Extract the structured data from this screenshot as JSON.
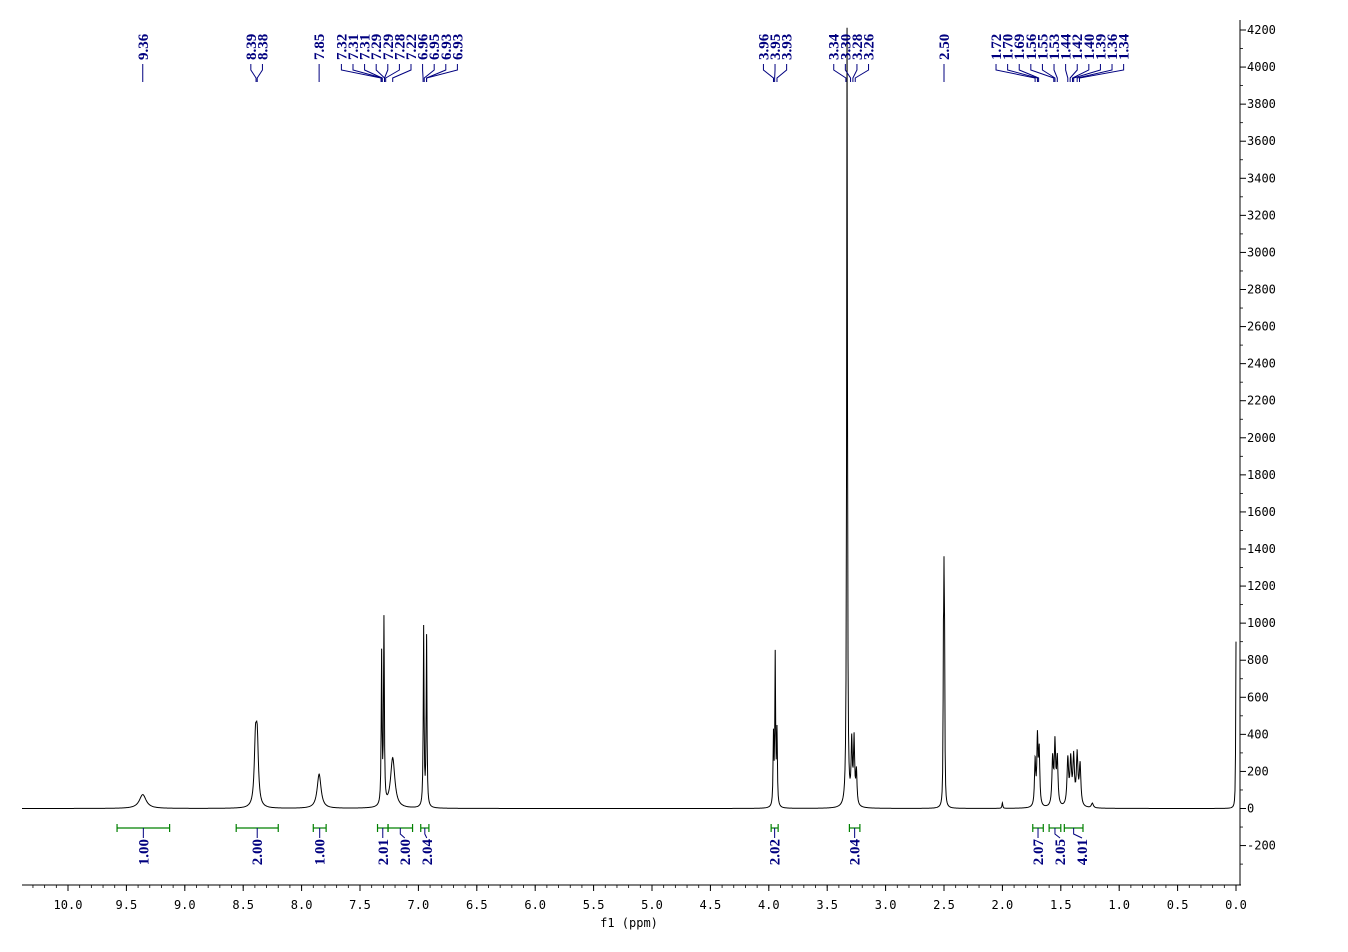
{
  "chart_data": {
    "type": "line",
    "title": "",
    "xlabel": "f1 (ppm)",
    "ylabel": "",
    "xlim": [
      10.35,
      -0.02
    ],
    "ylim": [
      -420,
      4230
    ],
    "x_ticks": [
      "10.0",
      "9.5",
      "9.0",
      "8.5",
      "8.0",
      "7.5",
      "7.0",
      "6.5",
      "6.0",
      "5.5",
      "5.0",
      "4.5",
      "4.0",
      "3.5",
      "3.0",
      "2.5",
      "2.0",
      "1.5",
      "1.0",
      "0.5",
      "0.0"
    ],
    "x_tick_values": [
      10.0,
      9.5,
      9.0,
      8.5,
      8.0,
      7.5,
      7.0,
      6.5,
      6.0,
      5.5,
      5.0,
      4.5,
      4.0,
      3.5,
      3.0,
      2.5,
      2.0,
      1.5,
      1.0,
      0.5,
      0.0
    ],
    "y_ticks": [
      "4200",
      "4000",
      "3800",
      "3600",
      "3400",
      "3200",
      "3000",
      "2800",
      "2600",
      "2400",
      "2200",
      "2000",
      "1800",
      "1600",
      "1400",
      "1200",
      "1000",
      "800",
      "600",
      "400",
      "200",
      "0",
      "-200"
    ],
    "y_tick_values": [
      4200,
      4000,
      3800,
      3600,
      3400,
      3200,
      3000,
      2800,
      2600,
      2400,
      2200,
      2000,
      1800,
      1600,
      1400,
      1200,
      1000,
      800,
      600,
      400,
      200,
      0,
      -200
    ],
    "peaks": [
      {
        "ppm": 9.36,
        "height": 75,
        "width": 0.035
      },
      {
        "ppm": 8.395,
        "height": 320,
        "width": 0.012
      },
      {
        "ppm": 8.38,
        "height": 330,
        "width": 0.012
      },
      {
        "ppm": 7.85,
        "height": 185,
        "width": 0.02
      },
      {
        "ppm": 7.315,
        "height": 810,
        "width": 0.004
      },
      {
        "ppm": 7.295,
        "height": 990,
        "width": 0.004
      },
      {
        "ppm": 7.22,
        "height": 270,
        "width": 0.022
      },
      {
        "ppm": 6.955,
        "height": 965,
        "width": 0.004
      },
      {
        "ppm": 6.93,
        "height": 915,
        "width": 0.004
      },
      {
        "ppm": 3.96,
        "height": 370,
        "width": 0.004
      },
      {
        "ppm": 3.945,
        "height": 805,
        "width": 0.004
      },
      {
        "ppm": 3.93,
        "height": 390,
        "width": 0.004
      },
      {
        "ppm": 3.33,
        "height": 4200,
        "width": 0.004
      },
      {
        "ppm": 3.29,
        "height": 330,
        "width": 0.006
      },
      {
        "ppm": 3.27,
        "height": 350,
        "width": 0.006
      },
      {
        "ppm": 3.25,
        "height": 180,
        "width": 0.006
      },
      {
        "ppm": 2.505,
        "height": 700,
        "width": 0.003
      },
      {
        "ppm": 2.5,
        "height": 990,
        "width": 0.003
      },
      {
        "ppm": 2.495,
        "height": 700,
        "width": 0.003
      },
      {
        "ppm": 2.0,
        "height": 30,
        "width": 0.004
      },
      {
        "ppm": 1.72,
        "height": 240,
        "width": 0.006
      },
      {
        "ppm": 1.7,
        "height": 360,
        "width": 0.006
      },
      {
        "ppm": 1.685,
        "height": 290,
        "width": 0.006
      },
      {
        "ppm": 1.57,
        "height": 250,
        "width": 0.007
      },
      {
        "ppm": 1.55,
        "height": 330,
        "width": 0.007
      },
      {
        "ppm": 1.53,
        "height": 250,
        "width": 0.007
      },
      {
        "ppm": 1.44,
        "height": 250,
        "width": 0.008
      },
      {
        "ppm": 1.415,
        "height": 240,
        "width": 0.008
      },
      {
        "ppm": 1.39,
        "height": 255,
        "width": 0.008
      },
      {
        "ppm": 1.36,
        "height": 270,
        "width": 0.008
      },
      {
        "ppm": 1.335,
        "height": 220,
        "width": 0.008
      },
      {
        "ppm": 1.23,
        "height": 25,
        "width": 0.01
      },
      {
        "ppm": 0.0,
        "height": 900,
        "width": 0.003
      }
    ],
    "peak_labels": [
      {
        "group": [
          {
            "text": "9.36",
            "ppm": 9.36
          }
        ]
      },
      {
        "group": [
          {
            "text": "8.39",
            "ppm": 8.39
          },
          {
            "text": "8.38",
            "ppm": 8.38
          }
        ]
      },
      {
        "group": [
          {
            "text": "7.85",
            "ppm": 7.85
          }
        ]
      },
      {
        "group": [
          {
            "text": "7.32",
            "ppm": 7.32
          },
          {
            "text": "7.31",
            "ppm": 7.31
          },
          {
            "text": "7.31",
            "ppm": 7.31
          },
          {
            "text": "7.29",
            "ppm": 7.29
          },
          {
            "text": "7.29",
            "ppm": 7.29
          },
          {
            "text": "7.28",
            "ppm": 7.28
          },
          {
            "text": "7.22",
            "ppm": 7.22
          },
          {
            "text": "6.96",
            "ppm": 6.96
          },
          {
            "text": "6.95",
            "ppm": 6.95
          },
          {
            "text": "6.93",
            "ppm": 6.93
          },
          {
            "text": "6.93",
            "ppm": 6.93
          }
        ]
      },
      {
        "group": [
          {
            "text": "3.96",
            "ppm": 3.96
          },
          {
            "text": "3.95",
            "ppm": 3.95
          },
          {
            "text": "3.93",
            "ppm": 3.93
          }
        ]
      },
      {
        "group": [
          {
            "text": "3.34",
            "ppm": 3.34
          },
          {
            "text": "3.30",
            "ppm": 3.3
          },
          {
            "text": "3.28",
            "ppm": 3.28
          },
          {
            "text": "3.26",
            "ppm": 3.26
          }
        ]
      },
      {
        "group": [
          {
            "text": "2.50",
            "ppm": 2.5
          }
        ]
      },
      {
        "group": [
          {
            "text": "1.72",
            "ppm": 1.72
          },
          {
            "text": "1.70",
            "ppm": 1.7
          },
          {
            "text": "1.69",
            "ppm": 1.69
          },
          {
            "text": "1.56",
            "ppm": 1.56
          },
          {
            "text": "1.55",
            "ppm": 1.55
          },
          {
            "text": "1.53",
            "ppm": 1.53
          },
          {
            "text": "1.44",
            "ppm": 1.44
          },
          {
            "text": "1.42",
            "ppm": 1.42
          },
          {
            "text": "1.40",
            "ppm": 1.4
          },
          {
            "text": "1.39",
            "ppm": 1.39
          },
          {
            "text": "1.36",
            "ppm": 1.36
          },
          {
            "text": "1.34",
            "ppm": 1.34
          }
        ]
      }
    ],
    "integrals": [
      {
        "from": 9.58,
        "to": 9.13,
        "value": "1.00"
      },
      {
        "from": 8.56,
        "to": 8.2,
        "value": "2.00"
      },
      {
        "from": 7.9,
        "to": 7.79,
        "value": "1.00"
      },
      {
        "from": 7.35,
        "to": 7.26,
        "value": "2.01"
      },
      {
        "from": 7.26,
        "to": 7.05,
        "value": "2.00"
      },
      {
        "from": 6.98,
        "to": 6.91,
        "value": "2.04"
      },
      {
        "from": 3.98,
        "to": 3.92,
        "value": "2.02"
      },
      {
        "from": 3.31,
        "to": 3.22,
        "value": "2.04"
      },
      {
        "from": 1.74,
        "to": 1.65,
        "value": "2.07"
      },
      {
        "from": 1.6,
        "to": 1.5,
        "value": "2.05"
      },
      {
        "from": 1.47,
        "to": 1.31,
        "value": "4.01"
      }
    ],
    "colors": {
      "spectrum": "#000000",
      "peak_labels": "#00007f",
      "integrals": "#008000",
      "integral_labels": "#00007f",
      "axes": "#000000"
    },
    "grid": false
  }
}
